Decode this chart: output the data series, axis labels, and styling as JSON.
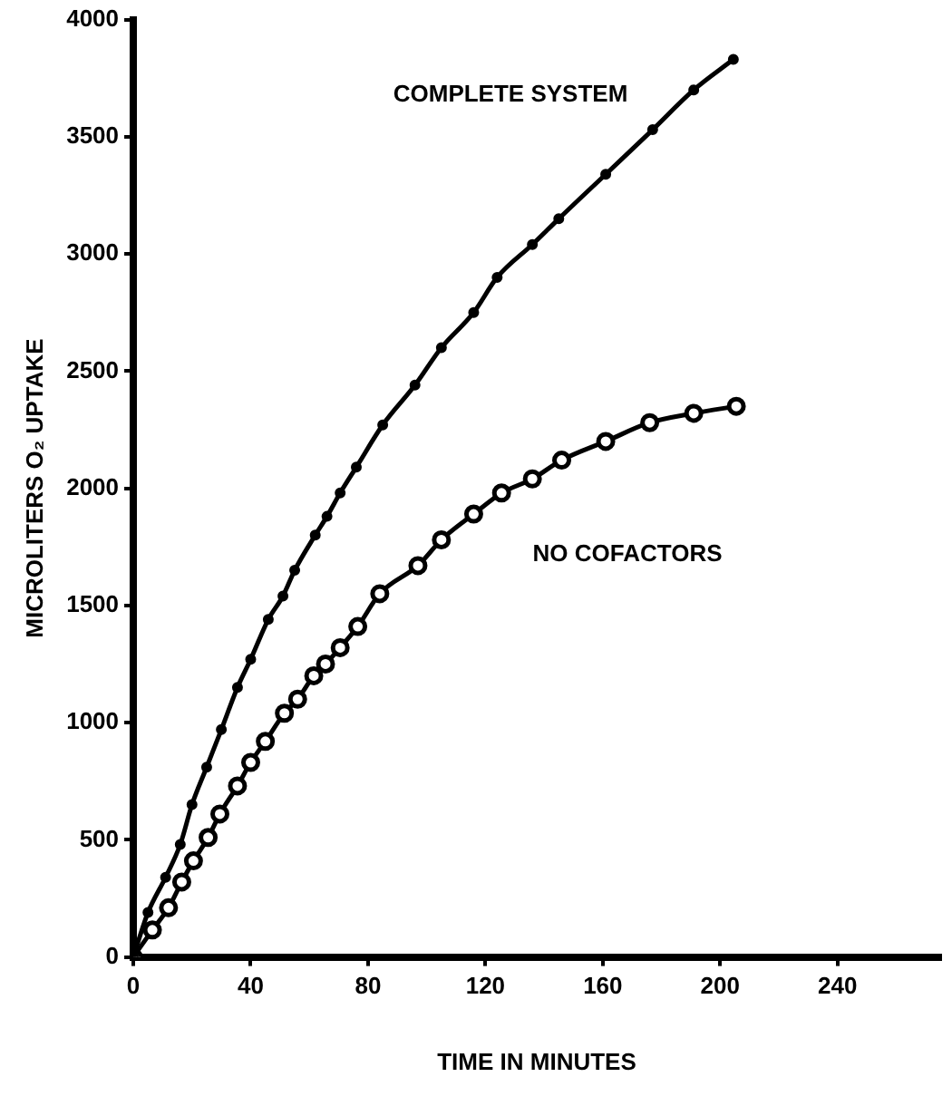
{
  "chart_data": {
    "type": "line",
    "xlabel": "TIME IN MINUTES",
    "ylabel": "MICROLITERS O₂ UPTAKE",
    "xlim": [
      0,
      275
    ],
    "xticks": [
      0,
      40,
      80,
      120,
      160,
      200,
      240
    ],
    "ylim": [
      0,
      4000
    ],
    "yticks": [
      0,
      500,
      1000,
      1500,
      2000,
      2500,
      3000,
      3500,
      4000
    ],
    "grid": false,
    "legend": false,
    "marker": "circle",
    "line_style": "solid",
    "series": [
      {
        "name": "COMPLETE SYSTEM",
        "color": "#000000",
        "x": [
          0,
          5,
          11,
          16,
          20,
          25,
          30,
          35.5,
          40,
          46,
          51,
          55,
          62,
          66,
          70.5,
          76,
          85,
          96,
          105,
          116,
          124,
          136,
          145,
          161,
          177,
          191,
          204.5
        ],
        "values": [
          0,
          190,
          340,
          480,
          650,
          810,
          970,
          1150,
          1270,
          1440,
          1540,
          1650,
          1800,
          1880,
          1980,
          2090,
          2270,
          2440,
          2600,
          2750,
          2900,
          3040,
          3150,
          3340,
          3530,
          3700,
          3830
        ]
      },
      {
        "name": "NO COFACTORS",
        "color": "#000000",
        "x": [
          0,
          6.5,
          12,
          16.5,
          20.5,
          25.5,
          29.5,
          35.5,
          40,
          45,
          51.5,
          56,
          61.5,
          65.5,
          70.5,
          76.5,
          84,
          97,
          105,
          116,
          125.5,
          136,
          146,
          161,
          176,
          191,
          205.5
        ],
        "values": [
          0,
          115,
          210,
          320,
          410,
          510,
          610,
          730,
          830,
          920,
          1040,
          1100,
          1200,
          1250,
          1320,
          1410,
          1550,
          1670,
          1780,
          1890,
          1980,
          2040,
          2120,
          2200,
          2280,
          2320,
          2350
        ]
      }
    ]
  }
}
